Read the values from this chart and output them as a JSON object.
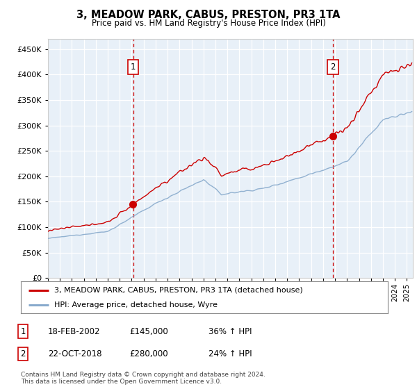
{
  "title": "3, MEADOW PARK, CABUS, PRESTON, PR3 1TA",
  "subtitle": "Price paid vs. HM Land Registry's House Price Index (HPI)",
  "ytick_values": [
    0,
    50000,
    100000,
    150000,
    200000,
    250000,
    300000,
    350000,
    400000,
    450000
  ],
  "ylim": [
    0,
    470000
  ],
  "xlim_start": 1995.0,
  "xlim_end": 2025.5,
  "sale1_date": 2002.12,
  "sale1_price": 145000,
  "sale2_date": 2018.8,
  "sale2_price": 280000,
  "red_color": "#cc0000",
  "blue_color": "#88aacc",
  "vline_color": "#cc0000",
  "grid_color": "#cccccc",
  "bg_fill_color": "#ddeeff",
  "legend_label_red": "3, MEADOW PARK, CABUS, PRESTON, PR3 1TA (detached house)",
  "legend_label_blue": "HPI: Average price, detached house, Wyre",
  "table_data": [
    {
      "num": "1",
      "date": "18-FEB-2002",
      "price": "£145,000",
      "change": "36% ↑ HPI"
    },
    {
      "num": "2",
      "date": "22-OCT-2018",
      "price": "£280,000",
      "change": "24% ↑ HPI"
    }
  ],
  "footnote": "Contains HM Land Registry data © Crown copyright and database right 2024.\nThis data is licensed under the Open Government Licence v3.0.",
  "background_color": "#ffffff"
}
